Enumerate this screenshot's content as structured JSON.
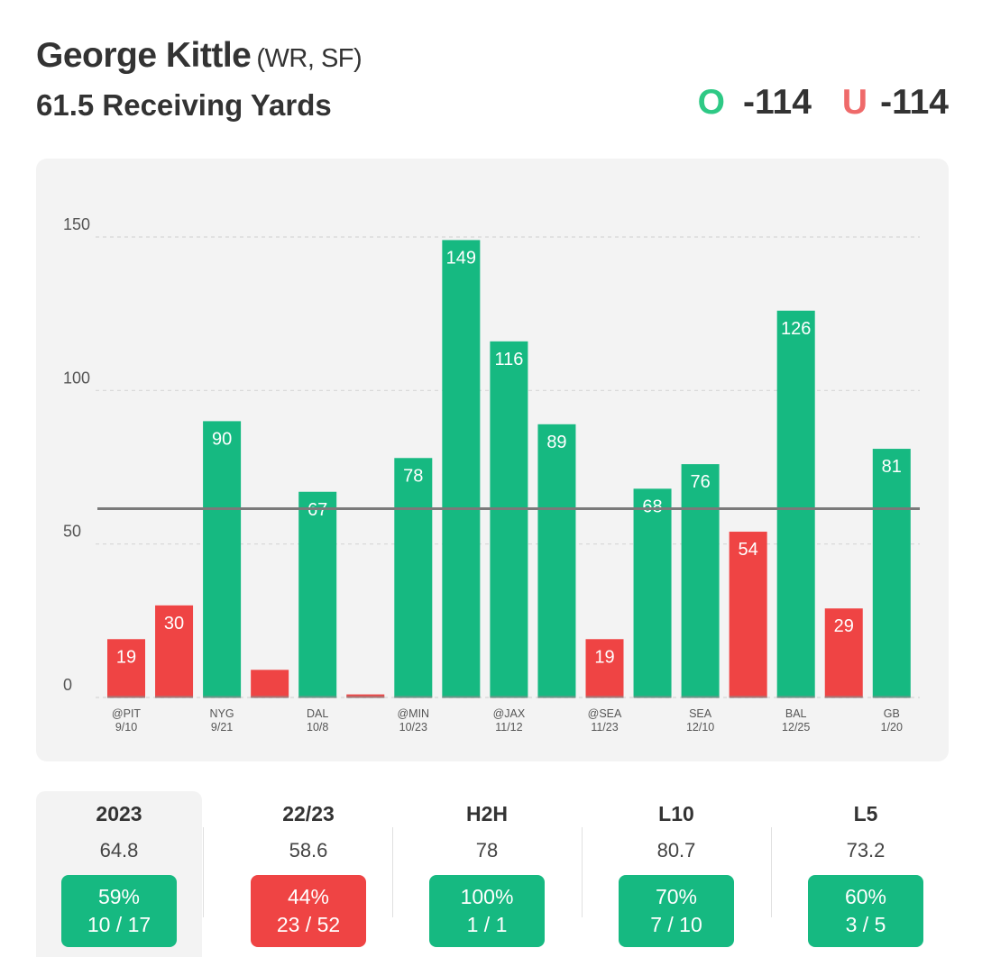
{
  "header": {
    "player_name": "George Kittle",
    "player_meta": "(WR, SF)",
    "market": "61.5 Receiving Yards",
    "over_letter": "O",
    "over_odds": "-114",
    "under_letter": "U",
    "under_odds": "-114"
  },
  "chart_data": {
    "type": "bar",
    "title": "",
    "xlabel": "",
    "ylabel": "",
    "ylim": [
      0,
      150
    ],
    "yticks": [
      0,
      50,
      100,
      150
    ],
    "threshold": 61.5,
    "values": [
      19,
      30,
      90,
      9,
      67,
      1,
      78,
      149,
      116,
      89,
      19,
      68,
      76,
      54,
      126,
      29,
      81
    ],
    "value_labels": [
      "19",
      "30",
      "90",
      "",
      "67",
      "",
      "78",
      "149",
      "116",
      "89",
      "19",
      "68",
      "76",
      "54",
      "126",
      "29",
      "81"
    ],
    "tick_labels": [
      [
        "@PIT",
        "9/10"
      ],
      [
        "",
        ""
      ],
      [
        "NYG",
        "9/21"
      ],
      [
        "",
        ""
      ],
      [
        "DAL",
        "10/8"
      ],
      [
        "",
        ""
      ],
      [
        "@MIN",
        "10/23"
      ],
      [
        "",
        ""
      ],
      [
        "@JAX",
        "11/12"
      ],
      [
        "",
        ""
      ],
      [
        "@SEA",
        "11/23"
      ],
      [
        "",
        ""
      ],
      [
        "SEA",
        "12/10"
      ],
      [
        "",
        ""
      ],
      [
        "BAL",
        "12/25"
      ],
      [
        "",
        ""
      ],
      [
        "GB",
        "1/20"
      ]
    ],
    "colors": {
      "over": "#16b981",
      "under": "#ef4444",
      "line": "#7a7a7a"
    }
  },
  "stats": [
    {
      "label": "2023",
      "avg": "64.8",
      "pct": "59%",
      "record": "10 / 17",
      "status": "green"
    },
    {
      "label": "22/23",
      "avg": "58.6",
      "pct": "44%",
      "record": "23 / 52",
      "status": "red"
    },
    {
      "label": "H2H",
      "avg": "78",
      "pct": "100%",
      "record": "1 / 1",
      "status": "green"
    },
    {
      "label": "L10",
      "avg": "80.7",
      "pct": "70%",
      "record": "7 / 10",
      "status": "green"
    },
    {
      "label": "L5",
      "avg": "73.2",
      "pct": "60%",
      "record": "3 / 5",
      "status": "green"
    }
  ]
}
